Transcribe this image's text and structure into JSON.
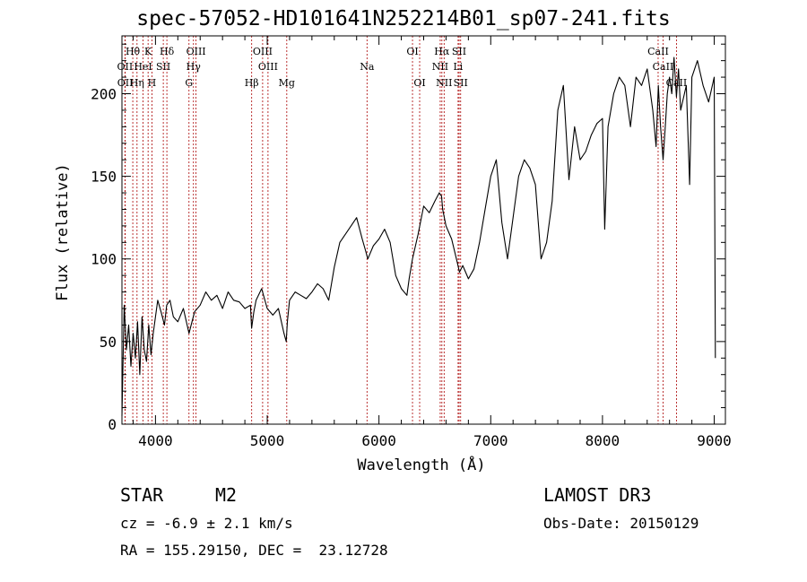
{
  "chart_data": {
    "type": "line",
    "title": "spec-57052-HD101641N252214B01_sp07-241.fits",
    "xlabel": "Wavelength (Å)",
    "ylabel": "Flux (relative)",
    "xlim": [
      3700,
      9100
    ],
    "ylim": [
      0,
      235
    ],
    "x_ticks": [
      4000,
      5000,
      6000,
      7000,
      8000,
      9000
    ],
    "y_ticks": [
      0,
      50,
      100,
      150,
      200
    ],
    "series": [
      {
        "name": "flux",
        "x": [
          3700,
          3720,
          3740,
          3760,
          3780,
          3800,
          3820,
          3840,
          3860,
          3880,
          3900,
          3920,
          3940,
          3960,
          3980,
          4000,
          4020,
          4050,
          4080,
          4100,
          4130,
          4160,
          4200,
          4250,
          4300,
          4350,
          4400,
          4450,
          4500,
          4550,
          4600,
          4650,
          4700,
          4750,
          4800,
          4850,
          4860,
          4880,
          4900,
          4950,
          5000,
          5050,
          5100,
          5150,
          5170,
          5180,
          5200,
          5250,
          5300,
          5350,
          5400,
          5450,
          5500,
          5550,
          5600,
          5650,
          5700,
          5750,
          5800,
          5850,
          5880,
          5900,
          5950,
          6000,
          6050,
          6100,
          6150,
          6200,
          6250,
          6270,
          6300,
          6350,
          6400,
          6450,
          6500,
          6540,
          6560,
          6570,
          6600,
          6650,
          6700,
          6720,
          6750,
          6800,
          6850,
          6900,
          6950,
          7000,
          7050,
          7100,
          7150,
          7200,
          7250,
          7300,
          7350,
          7400,
          7450,
          7500,
          7550,
          7600,
          7650,
          7700,
          7750,
          7800,
          7850,
          7900,
          7950,
          8000,
          8020,
          8050,
          8100,
          8150,
          8200,
          8250,
          8300,
          8350,
          8400,
          8450,
          8480,
          8500,
          8520,
          8542,
          8560,
          8580,
          8600,
          8620,
          8640,
          8662,
          8680,
          8700,
          8750,
          8780,
          8800,
          8850,
          8900,
          8950,
          9000,
          9010
        ],
        "y": [
          5,
          72,
          45,
          60,
          35,
          55,
          40,
          62,
          30,
          65,
          45,
          38,
          60,
          42,
          55,
          65,
          75,
          68,
          60,
          72,
          75,
          65,
          62,
          70,
          55,
          68,
          72,
          80,
          75,
          78,
          70,
          80,
          75,
          74,
          70,
          72,
          58,
          68,
          75,
          82,
          70,
          66,
          70,
          55,
          50,
          62,
          75,
          80,
          78,
          76,
          80,
          85,
          82,
          75,
          95,
          110,
          115,
          120,
          125,
          112,
          105,
          100,
          108,
          112,
          118,
          110,
          90,
          82,
          78,
          88,
          100,
          115,
          132,
          128,
          135,
          140,
          138,
          130,
          120,
          112,
          98,
          92,
          96,
          88,
          94,
          110,
          130,
          150,
          160,
          122,
          100,
          125,
          150,
          160,
          155,
          145,
          100,
          110,
          135,
          190,
          205,
          148,
          180,
          160,
          165,
          175,
          182,
          185,
          118,
          180,
          200,
          210,
          205,
          180,
          210,
          205,
          215,
          190,
          168,
          205,
          180,
          160,
          178,
          200,
          210,
          200,
          222,
          198,
          215,
          190,
          205,
          145,
          210,
          220,
          205,
          195,
          210,
          40
        ]
      }
    ],
    "lines_top": [
      {
        "label": "Hθ",
        "x": 3797
      },
      {
        "label": "K",
        "x": 3934
      },
      {
        "label": "Hδ",
        "x": 4102
      },
      {
        "label": "OIII",
        "x": 4363
      },
      {
        "label": "OIII",
        "x": 4959
      },
      {
        "label": "OI",
        "x": 6300
      },
      {
        "label": "Hα",
        "x": 6563
      },
      {
        "label": "SII",
        "x": 6717
      },
      {
        "label": "CaII",
        "x": 8498
      }
    ],
    "lines_mid": [
      {
        "label": "OII",
        "x": 3727
      },
      {
        "label": "HeI",
        "x": 3889
      },
      {
        "label": "SII",
        "x": 4070
      },
      {
        "label": "Hγ",
        "x": 4340
      },
      {
        "label": "OIII",
        "x": 5007
      },
      {
        "label": "Na",
        "x": 5893
      },
      {
        "label": "NII",
        "x": 6548
      },
      {
        "label": "Li",
        "x": 6708
      },
      {
        "label": "CaII",
        "x": 8542
      }
    ],
    "lines_bot": [
      {
        "label": "OII",
        "x": 3729
      },
      {
        "label": "Hη",
        "x": 3835
      },
      {
        "label": "H",
        "x": 3968
      },
      {
        "label": "G",
        "x": 4300
      },
      {
        "label": "Hβ",
        "x": 4861
      },
      {
        "label": "Mg",
        "x": 5175
      },
      {
        "label": "OI",
        "x": 6364
      },
      {
        "label": "NII",
        "x": 6583
      },
      {
        "label": "SII",
        "x": 6731
      },
      {
        "label": "CaII",
        "x": 8662
      }
    ],
    "colors": {
      "spectrum": "#000000",
      "lines": "#aa0000",
      "axes": "#000000"
    }
  },
  "info": {
    "object_class": "STAR",
    "subclass": "M2",
    "survey": "LAMOST DR3",
    "cz": "cz = -6.9 ± 2.1 km/s",
    "obs_date": "Obs-Date: 20150129",
    "coords": "RA = 155.29150, DEC =  23.12728"
  }
}
